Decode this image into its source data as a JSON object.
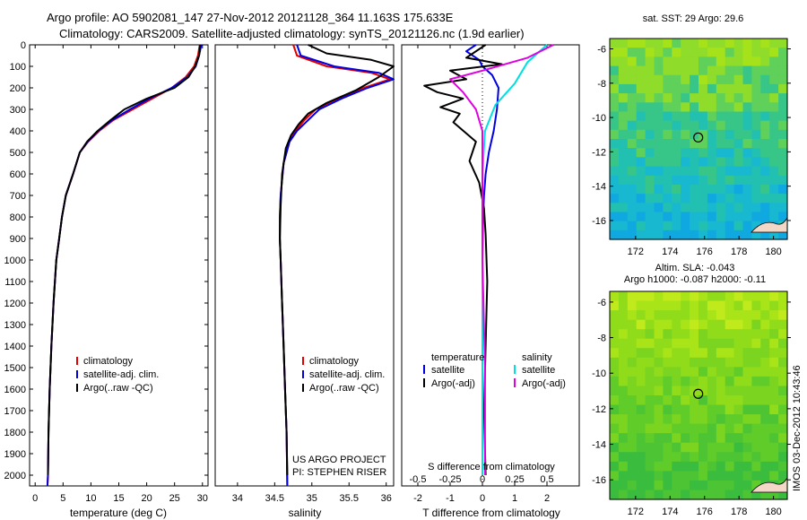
{
  "header": {
    "title_line1": "Argo profile: AO 5902081_147 27-Nov-2012 20121128_364 11.163S 175.633E",
    "title_line2": "Climatology: CARS2009. Satellite-adjusted climatology: synTS_20121126.nc (1.9d earlier)"
  },
  "colors": {
    "climatology": "#e00000",
    "satellite": "#0000e0",
    "argo": "#000000",
    "salinity_satellite": "#00e0e0",
    "salinity_argo": "#e000e0",
    "zero_line": "#000000"
  },
  "chart_data": [
    {
      "type": "line",
      "name": "temperature-profile",
      "xlabel": "temperature (deg C)",
      "ylabel": "",
      "xlim": [
        -1,
        31
      ],
      "ylim": [
        2050,
        0
      ],
      "xticks": [
        0,
        5,
        10,
        15,
        20,
        25,
        30
      ],
      "yticks": [
        0,
        100,
        200,
        300,
        400,
        500,
        600,
        700,
        800,
        900,
        1000,
        1100,
        1200,
        1300,
        1400,
        1500,
        1600,
        1700,
        1800,
        1900,
        2000
      ],
      "legend": [
        "climatology",
        "satellite-adj. clim.",
        "Argo(..raw -QC)"
      ],
      "legend_position": "lower-center",
      "series": [
        {
          "name": "climatology",
          "x": [
            29.5,
            29.2,
            28.5,
            27.0,
            24.5,
            21.0,
            17.5,
            14.0,
            11.5,
            9.5,
            8.0,
            6.8,
            5.5,
            4.8,
            4.3,
            3.8,
            3.3,
            2.9,
            2.6,
            2.4,
            2.3,
            2.2
          ],
          "y": [
            0,
            50,
            100,
            150,
            200,
            250,
            300,
            350,
            400,
            450,
            500,
            600,
            700,
            800,
            900,
            1000,
            1200,
            1400,
            1600,
            1800,
            2000,
            2050
          ]
        },
        {
          "name": "satellite-adj. clim.",
          "x": [
            29.8,
            29.4,
            28.8,
            27.3,
            24.5,
            20.5,
            17.0,
            13.8,
            11.3,
            9.4,
            8.0,
            6.8,
            5.5,
            4.8,
            4.3,
            3.8,
            3.3,
            2.9,
            2.6,
            2.4,
            2.3,
            2.2
          ],
          "y": [
            0,
            50,
            100,
            150,
            200,
            250,
            300,
            350,
            400,
            450,
            500,
            600,
            700,
            800,
            900,
            1000,
            1200,
            1400,
            1600,
            1800,
            2000,
            2050
          ]
        },
        {
          "name": "Argo(..raw -QC)",
          "x": [
            29.6,
            29.4,
            28.7,
            27.5,
            25.0,
            20.0,
            16.0,
            13.5,
            11.2,
            9.3,
            8.0,
            6.8,
            5.5,
            4.8,
            4.3,
            3.8,
            3.3,
            2.9,
            2.6,
            2.4,
            2.3
          ],
          "y": [
            0,
            50,
            100,
            150,
            200,
            250,
            300,
            350,
            400,
            450,
            500,
            600,
            700,
            800,
            900,
            1000,
            1200,
            1400,
            1600,
            1800,
            2000
          ]
        }
      ]
    },
    {
      "type": "line",
      "name": "salinity-profile",
      "xlabel": "salinity",
      "xlim": [
        33.7,
        36.1
      ],
      "ylim": [
        2050,
        0
      ],
      "xticks": [
        34,
        34.5,
        35,
        35.5,
        36
      ],
      "xtick_labels": [
        "34",
        "34.5",
        "35",
        "35.5",
        "36"
      ],
      "legend": [
        "climatology",
        "satellite-adj. clim.",
        "Argo(..raw -QC)"
      ],
      "legend_position": "lower-center",
      "annotations": [
        "US ARGO PROJECT",
        "PI: STEPHEN RISER"
      ],
      "series": [
        {
          "name": "climatology",
          "x": [
            34.75,
            34.8,
            35.2,
            35.8,
            36.05,
            35.7,
            35.35,
            35.05,
            34.9,
            34.78,
            34.7,
            34.62,
            34.58,
            34.57,
            34.57,
            34.58,
            34.6,
            34.62,
            34.64,
            34.66,
            34.67
          ],
          "y": [
            0,
            50,
            100,
            130,
            160,
            200,
            250,
            300,
            350,
            400,
            450,
            550,
            700,
            800,
            900,
            1000,
            1200,
            1400,
            1600,
            1800,
            2050
          ]
        },
        {
          "name": "satellite-adj. clim.",
          "x": [
            34.8,
            34.85,
            35.3,
            35.9,
            36.1,
            35.75,
            35.4,
            35.1,
            34.95,
            34.8,
            34.7,
            34.62,
            34.58,
            34.57,
            34.57,
            34.58,
            34.6,
            34.62,
            34.64,
            34.66,
            34.67
          ],
          "y": [
            0,
            50,
            100,
            130,
            160,
            200,
            250,
            300,
            350,
            400,
            450,
            550,
            700,
            800,
            900,
            1000,
            1200,
            1400,
            1600,
            1800,
            2050
          ]
        },
        {
          "name": "Argo(..raw -QC)",
          "x": [
            34.95,
            35.2,
            35.8,
            36.1,
            35.9,
            35.6,
            35.2,
            34.95,
            34.82,
            34.72,
            34.65,
            34.6,
            34.58,
            34.57,
            34.58,
            34.6,
            34.62,
            34.64,
            34.66,
            34.67
          ],
          "y": [
            0,
            40,
            70,
            100,
            150,
            210,
            270,
            320,
            370,
            420,
            480,
            600,
            750,
            900,
            1000,
            1200,
            1400,
            1600,
            1800,
            2000
          ]
        }
      ]
    },
    {
      "type": "line",
      "name": "difference-profile",
      "xlabel": "T difference from climatology",
      "xlabel_top": "S difference from climatology",
      "xlim": [
        -2.5,
        3.0
      ],
      "ylim": [
        2050,
        0
      ],
      "xticks": [
        -2,
        -1,
        0,
        1,
        2
      ],
      "top_ticks": [
        -0.5,
        -0.25,
        0,
        0.25,
        0.5
      ],
      "legend_temperature": [
        "temperature",
        "satellite",
        "Argo(-adj)"
      ],
      "legend_salinity": [
        "salinity",
        "satellite",
        "Argo(-adj)"
      ],
      "series": [
        {
          "name": "T satellite",
          "x": [
            -0.2,
            -0.5,
            -0.1,
            0.0,
            0.3,
            0.5,
            0.45,
            0.35,
            0.2,
            0.1,
            0.05,
            0.02,
            0.0,
            0.0,
            0.0,
            0.0,
            0.0
          ],
          "y": [
            0,
            30,
            70,
            100,
            140,
            200,
            300,
            400,
            500,
            600,
            700,
            800,
            1000,
            1200,
            1500,
            1800,
            2000
          ]
        },
        {
          "name": "T Argo(-adj)",
          "x": [
            0.1,
            -0.5,
            0.6,
            -1.0,
            -0.5,
            -1.8,
            -1.4,
            -0.6,
            -1.3,
            -0.7,
            -0.9,
            -0.2,
            -0.4,
            -0.1,
            0.05,
            0.1,
            0.15,
            0.1,
            0.05,
            0.1
          ],
          "y": [
            0,
            60,
            90,
            120,
            160,
            190,
            220,
            250,
            290,
            320,
            360,
            450,
            540,
            640,
            760,
            880,
            1100,
            1400,
            1700,
            2000
          ]
        },
        {
          "name": "S satellite",
          "x": [
            0.5,
            0.35,
            0.25,
            0.1,
            0.02,
            0.0,
            0.0,
            0.0,
            0.0,
            0.0
          ],
          "y": [
            0,
            80,
            180,
            280,
            400,
            600,
            900,
            1200,
            1600,
            2000
          ]
        },
        {
          "name": "S Argo(-adj)",
          "x": [
            0.55,
            0.35,
            0.0,
            -0.25,
            -0.15,
            -0.05,
            0.0,
            0.0,
            0.0,
            0.02,
            0.02
          ],
          "y": [
            0,
            60,
            120,
            160,
            220,
            300,
            400,
            600,
            1000,
            1500,
            2000
          ]
        }
      ]
    },
    {
      "type": "heatmap",
      "name": "sst-map",
      "title": "sat. SST: 29 Argo: 29.6",
      "xticks": [
        172,
        174,
        176,
        178,
        180
      ],
      "yticks": [
        -6,
        -8,
        -10,
        -12,
        -14,
        -16
      ],
      "xlim": [
        170.5,
        180.8
      ],
      "ylim": [
        -17.1,
        -5.4
      ],
      "marker": {
        "lon": 175.633,
        "lat": -11.163
      }
    },
    {
      "type": "heatmap",
      "name": "sla-map",
      "title": "Altim. SLA: -0.043",
      "subtitle": "Argo h1000: -0.087 h2000: -0.11",
      "xticks": [
        172,
        174,
        176,
        178,
        180
      ],
      "yticks": [
        -6,
        -8,
        -10,
        -12,
        -14,
        -16
      ],
      "xlim": [
        170.5,
        180.8
      ],
      "ylim": [
        -17.1,
        -5.4
      ],
      "marker": {
        "lon": 175.633,
        "lat": -11.163
      }
    }
  ],
  "footer": {
    "stamp": "IMOS 03-Dec-2012 10:43:46"
  }
}
